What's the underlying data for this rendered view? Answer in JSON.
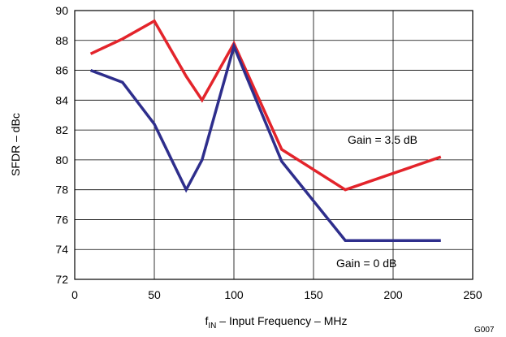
{
  "chart_data": {
    "type": "line",
    "xlabel_prefix": "f",
    "xlabel_subscript": "IN",
    "xlabel_rest": " – Input Frequency – MHz",
    "ylabel": "SFDR – dBc",
    "xlim": [
      0,
      250
    ],
    "ylim": [
      72,
      90
    ],
    "xticks": [
      "0",
      "50",
      "100",
      "150",
      "200",
      "250"
    ],
    "yticks": [
      "72",
      "74",
      "76",
      "78",
      "80",
      "82",
      "84",
      "86",
      "88",
      "90"
    ],
    "grid": true,
    "figure_id": "G007",
    "series": [
      {
        "name": "Gain = 3.5 dB",
        "color": "#e3242b",
        "x": [
          10,
          30,
          50,
          70,
          80,
          100,
          130,
          170,
          230
        ],
        "y": [
          87.1,
          88.1,
          89.3,
          85.6,
          84.0,
          87.8,
          80.7,
          78.0,
          80.2
        ]
      },
      {
        "name": "Gain = 0 dB",
        "color": "#2e2e8c",
        "x": [
          10,
          30,
          50,
          70,
          80,
          100,
          130,
          170,
          230
        ],
        "y": [
          86.0,
          85.2,
          82.4,
          78.0,
          80.0,
          87.6,
          79.9,
          74.6,
          74.6
        ]
      }
    ]
  }
}
